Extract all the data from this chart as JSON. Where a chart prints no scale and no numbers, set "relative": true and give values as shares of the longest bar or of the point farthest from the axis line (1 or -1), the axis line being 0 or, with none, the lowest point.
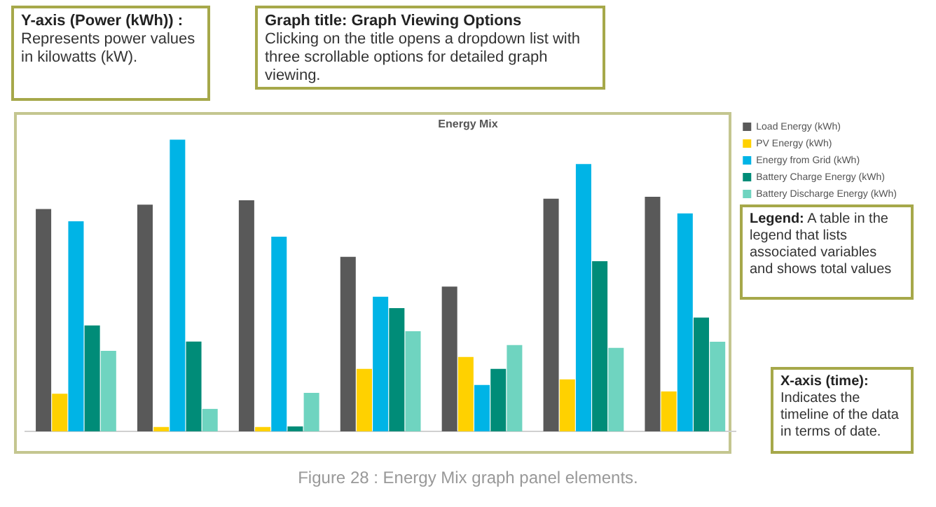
{
  "chart_data": {
    "type": "bar",
    "title": "Energy Mix",
    "relative": true,
    "legend": "top right",
    "categories": [
      null,
      null,
      null,
      null,
      null,
      null,
      null
    ],
    "series": [
      {
        "name": "Load Energy (kWh)",
        "color": "#595959",
        "values": [
          0.762,
          0.777,
          0.792,
          0.598,
          0.496,
          0.797,
          0.804
        ]
      },
      {
        "name": "PV Energy (kWh)",
        "color": "#ffd100",
        "values": [
          0.129,
          0.015,
          0.015,
          0.214,
          0.255,
          0.178,
          0.137
        ]
      },
      {
        "name": "Energy from Grid (kWh)",
        "color": "#00b4e6",
        "values": [
          0.72,
          1,
          0.667,
          0.461,
          0.159,
          0.916,
          0.747
        ]
      },
      {
        "name": "Battery Charge Energy (kWh)",
        "color": "#008c78",
        "values": [
          0.363,
          0.308,
          0.017,
          0.422,
          0.214,
          0.583,
          0.39
        ]
      },
      {
        "name": "Battery Discharge Energy (kWh)",
        "color": "#6fd4c0",
        "values": [
          0.276,
          0.077,
          0.132,
          0.343,
          0.296,
          0.286,
          0.307
        ]
      }
    ],
    "annotations": [
      "Y-axis (Power (kWh)) :",
      "Represents power values in kilowatts (kW).",
      "Graph title: Graph Viewing Options",
      "Clicking on the title opens a dropdown list with three scrollable options for detailed graph viewing.",
      "Legend:",
      "A table in the legend that lists associated variables and shows total values",
      "X-axis (time):",
      "Indicates the timeline of the data in terms of date.",
      "Figure 28 : Energy Mix graph panel elements."
    ]
  }
}
